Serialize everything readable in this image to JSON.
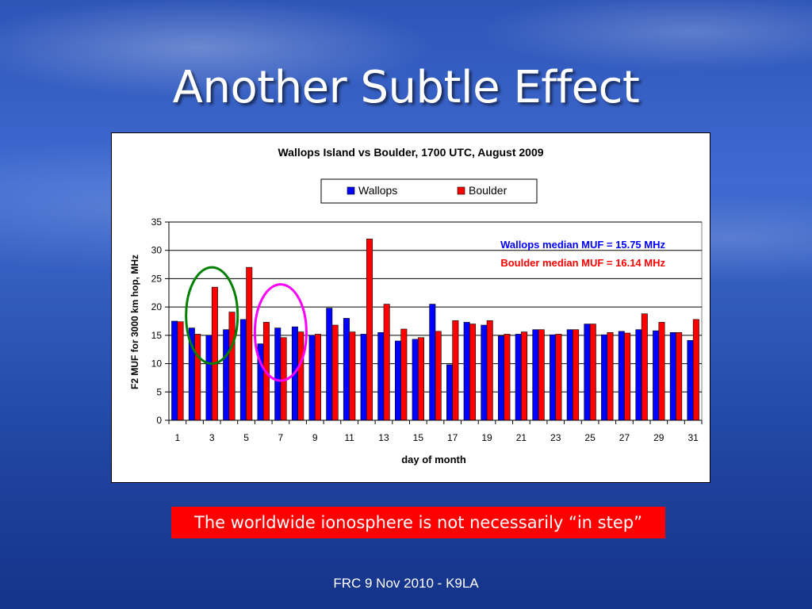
{
  "slide": {
    "title": "Another Subtle Effect",
    "banner": "The worldwide ionosphere is not necessarily “in step”",
    "footer": "FRC 9 Nov 2010 - K9LA"
  },
  "chart_data": {
    "type": "bar",
    "title": "Wallops Island vs Boulder, 1700 UTC, August 2009",
    "xlabel": "day of month",
    "ylabel": "F2 MUF for 3000 km hop, MHz",
    "ylim": [
      0,
      35
    ],
    "yticks": [
      0,
      5,
      10,
      15,
      20,
      25,
      30,
      35
    ],
    "categories": [
      1,
      2,
      3,
      4,
      5,
      6,
      7,
      8,
      9,
      10,
      11,
      12,
      13,
      14,
      15,
      16,
      17,
      18,
      19,
      20,
      21,
      22,
      23,
      24,
      25,
      26,
      27,
      28,
      29,
      30,
      31
    ],
    "xtick_labels": [
      "1",
      "3",
      "5",
      "7",
      "9",
      "11",
      "13",
      "15",
      "17",
      "19",
      "21",
      "23",
      "25",
      "27",
      "29",
      "31"
    ],
    "grid": true,
    "legend_position": "top-center",
    "series": [
      {
        "name": "Wallops",
        "color": "#0000ff",
        "values": [
          17.5,
          16.3,
          15.0,
          16.0,
          17.8,
          13.5,
          16.3,
          16.5,
          15.0,
          19.8,
          18.0,
          15.2,
          15.5,
          14.0,
          14.3,
          20.5,
          9.8,
          17.3,
          16.8,
          14.9,
          15.2,
          16.0,
          15.1,
          16.0,
          17.0,
          15.1,
          15.7,
          16.0,
          15.8,
          15.5,
          14.1
        ]
      },
      {
        "name": "Boulder",
        "color": "#ff0000",
        "values": [
          17.4,
          15.2,
          23.5,
          19.1,
          27.0,
          17.3,
          14.6,
          15.6,
          15.2,
          16.8,
          15.6,
          32.0,
          20.5,
          16.1,
          14.6,
          15.7,
          17.6,
          17.0,
          17.6,
          15.2,
          15.6,
          16.0,
          15.2,
          16.0,
          17.0,
          15.5,
          15.4,
          18.8,
          17.3,
          15.5,
          17.8
        ]
      }
    ],
    "annotations": [
      {
        "text": "Wallops median MUF = 15.75 MHz",
        "color": "#0000ff"
      },
      {
        "text": "Boulder median MUF = 16.14 MHz",
        "color": "#ff0000"
      }
    ],
    "highlights": [
      {
        "color": "#008000",
        "x_range": [
          1.5,
          4.5
        ],
        "y_range": [
          10,
          27
        ]
      },
      {
        "color": "#ff00ff",
        "x_range": [
          5.5,
          8.5
        ],
        "y_range": [
          7,
          24
        ]
      }
    ]
  }
}
